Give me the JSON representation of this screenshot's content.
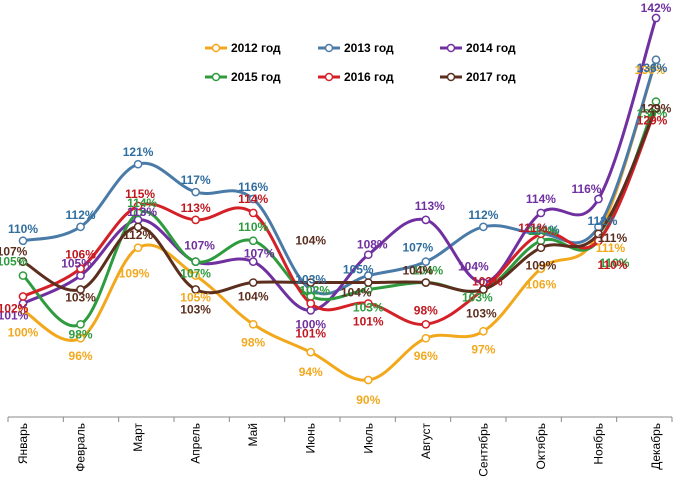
{
  "chart_data": {
    "type": "line",
    "title": "",
    "xlabel": "",
    "ylabel": "",
    "grid": false,
    "legend_placement": "top-center",
    "ylim": [
      85,
      145
    ],
    "categories": [
      "Январь",
      "Февраль",
      "Март",
      "Апрель",
      "Май",
      "Июнь",
      "Июль",
      "Август",
      "Сентябрь",
      "Октябрь",
      "Ноябрь",
      "Декабрь"
    ],
    "series": [
      {
        "name": "2012 год",
        "color": "#f2a81d",
        "label_color": "#f2a81d",
        "values": [
          100,
          96,
          109,
          105,
          98,
          94,
          90,
          96,
          97,
          106,
          111,
          136
        ]
      },
      {
        "name": "2013 год",
        "color": "#4a7ba8",
        "label_color": "#2f6e9f",
        "values": [
          110,
          112,
          121,
          117,
          116,
          103,
          105,
          107,
          112,
          111,
          112,
          136
        ]
      },
      {
        "name": "2014 год",
        "color": "#7030a0",
        "label_color": "#7030a0",
        "values": [
          101,
          105,
          113,
          107,
          107,
          100,
          108,
          113,
          104,
          114,
          116,
          142
        ]
      },
      {
        "name": "2015 год",
        "color": "#2e9c3e",
        "label_color": "#2e9c3e",
        "values": [
          105,
          98,
          114,
          107,
          110,
          102,
          103,
          104,
          103,
          110,
          110,
          130
        ]
      },
      {
        "name": "2016 год",
        "color": "#d42027",
        "label_color": "#c0171f",
        "values": [
          102,
          106,
          115,
          113,
          114,
          101,
          101,
          98,
          103,
          111,
          110,
          129
        ]
      },
      {
        "name": "2017 год",
        "color": "#5c2e1e",
        "label_color": "#5c2e1e",
        "values": [
          107,
          103,
          112,
          103,
          104,
          104,
          104,
          104,
          103,
          109,
          111,
          129
        ]
      }
    ]
  }
}
